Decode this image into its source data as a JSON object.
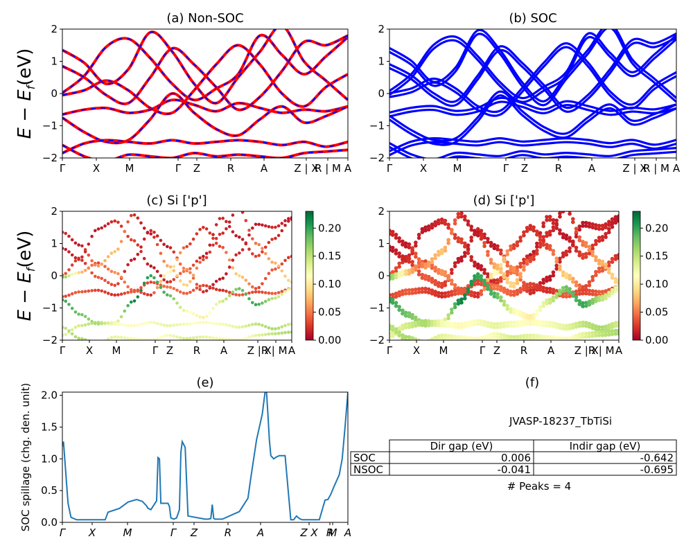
{
  "figure_texts": {
    "ylabel_main": "E − E",
    "ylabel_sub": "f",
    "ylabel_unit": "(eV)"
  },
  "chart_data": [
    {
      "id": "a",
      "type": "line",
      "title": "(a) Non-SOC",
      "ylim": [
        -2,
        2
      ],
      "yticks": [
        2,
        1,
        0,
        -1,
        -2
      ],
      "xticks": [
        "Γ",
        "X",
        "M",
        "Γ",
        "Z",
        "R",
        "A",
        "Z | X",
        "R | M",
        "A"
      ],
      "colors": [
        "#ff0000",
        "#0000ff"
      ],
      "series": [
        {
          "values": [
            0.02,
            0.55,
            1.45,
            1.7,
            1.1,
            0.3,
            -0.2,
            0.15,
            0.6,
            1.8,
            1.2,
            0.6,
            1.15,
            1.75
          ]
        },
        {
          "values": [
            0.85,
            0.5,
            -0.05,
            -0.3,
            0.5,
            1.4,
            0.9,
            0.2,
            -0.5,
            -0.1,
            0.7,
            1.6,
            1.5,
            1.8
          ]
        },
        {
          "values": [
            -0.05,
            0.1,
            0.4,
            0.1,
            -0.45,
            -0.6,
            0.1,
            0.9,
            1.5,
            0.9,
            0.0,
            -0.4,
            0.2,
            0.6
          ]
        },
        {
          "values": [
            -0.65,
            -0.5,
            -0.45,
            -0.6,
            -0.5,
            -0.2,
            -0.35,
            -0.55,
            -0.3,
            -0.45,
            -0.6,
            -0.5,
            -0.55,
            -0.4
          ]
        },
        {
          "values": [
            -0.75,
            -1.2,
            -1.5,
            -1.45,
            -0.8,
            0.0,
            -0.6,
            -1.1,
            -1.3,
            -0.8,
            -0.4,
            -0.9,
            -0.7,
            -0.4
          ]
        },
        {
          "values": [
            -1.85,
            -1.55,
            -1.45,
            -1.5,
            -1.55,
            -1.45,
            -1.55,
            -1.5,
            -1.45,
            -1.5,
            -1.6,
            -1.5,
            -1.65,
            -1.5
          ]
        },
        {
          "values": [
            -1.6,
            -1.95,
            -2.1,
            -1.9,
            -1.95,
            -2.0,
            -1.85,
            -1.95,
            -1.9,
            -1.95,
            -2.0,
            -1.85,
            -1.8,
            -1.75
          ]
        },
        {
          "values": [
            1.35,
            0.95,
            0.3,
            0.75,
            1.9,
            1.3,
            0.3,
            -0.3,
            0.5,
            1.3,
            2.1,
            1.0,
            0.4,
            -0.2
          ]
        }
      ]
    },
    {
      "id": "b",
      "type": "line",
      "title": "(b) SOC",
      "ylim": [
        -2,
        2
      ],
      "yticks": [
        2,
        1,
        0,
        -1,
        -2
      ],
      "xticks": [
        "Γ",
        "X",
        "M",
        "Γ",
        "Z",
        "R",
        "A",
        "Z | X",
        "R | M",
        "A"
      ],
      "colors": [
        "#0000ff"
      ],
      "series": [
        {
          "values": [
            0.02,
            0.55,
            1.45,
            1.7,
            1.1,
            0.3,
            -0.2,
            0.15,
            0.6,
            1.8,
            1.2,
            0.6,
            1.15,
            1.75
          ]
        },
        {
          "values": [
            0.85,
            0.5,
            -0.05,
            -0.3,
            0.5,
            1.4,
            0.9,
            0.2,
            -0.5,
            -0.1,
            0.7,
            1.6,
            1.5,
            1.8
          ]
        },
        {
          "values": [
            -0.05,
            0.1,
            0.4,
            0.1,
            -0.45,
            -0.6,
            0.1,
            0.9,
            1.5,
            0.9,
            0.0,
            -0.4,
            0.2,
            0.6
          ]
        },
        {
          "values": [
            -0.65,
            -0.5,
            -0.45,
            -0.6,
            -0.5,
            -0.2,
            -0.35,
            -0.55,
            -0.3,
            -0.45,
            -0.6,
            -0.5,
            -0.55,
            -0.4
          ]
        },
        {
          "values": [
            -0.75,
            -1.2,
            -1.5,
            -1.45,
            -0.8,
            0.0,
            -0.6,
            -1.1,
            -1.3,
            -0.8,
            -0.4,
            -0.9,
            -0.7,
            -0.4
          ]
        },
        {
          "values": [
            -1.85,
            -1.55,
            -1.45,
            -1.5,
            -1.55,
            -1.45,
            -1.55,
            -1.5,
            -1.45,
            -1.5,
            -1.6,
            -1.5,
            -1.65,
            -1.5
          ]
        },
        {
          "values": [
            -1.6,
            -1.95,
            -2.1,
            -1.9,
            -1.95,
            -2.0,
            -1.85,
            -1.95,
            -1.9,
            -1.95,
            -2.0,
            -1.85,
            -1.8,
            -1.75
          ]
        },
        {
          "values": [
            1.35,
            0.95,
            0.3,
            0.75,
            1.9,
            1.3,
            0.3,
            -0.3,
            0.5,
            1.3,
            2.1,
            1.0,
            0.4,
            -0.2
          ]
        }
      ]
    },
    {
      "id": "c",
      "type": "scatter",
      "title": "(c)  Si ['p']",
      "ylim": [
        -2,
        2
      ],
      "yticks": [
        2,
        1,
        0,
        -1,
        -2
      ],
      "xticks": [
        "Γ",
        "X",
        "M",
        "Γ",
        "Z",
        "R",
        "A",
        "Z |R",
        "X| M",
        "A"
      ],
      "colorbar": {
        "range": [
          0.0,
          0.23
        ],
        "ticks": [
          "0.20",
          "0.15",
          "0.10",
          "0.05",
          "0.00"
        ],
        "colormap": "RdYlGn"
      },
      "series": [
        {
          "values": [
            0.02,
            0.55,
            1.45,
            1.7,
            1.1,
            0.3,
            -0.2,
            0.15,
            0.6,
            1.8,
            1.2,
            0.6,
            1.15,
            1.75
          ],
          "weights": [
            0.04,
            0.02,
            0.01,
            0.02,
            0.03,
            0.01,
            0.02,
            0.05,
            0.01,
            0.02,
            0.01,
            0.03,
            0.02,
            0.01
          ]
        },
        {
          "values": [
            0.85,
            0.5,
            -0.05,
            -0.3,
            0.5,
            1.4,
            0.9,
            0.2,
            -0.5,
            -0.1,
            0.7,
            1.6,
            1.5,
            1.8
          ],
          "weights": [
            0.01,
            0.02,
            0.04,
            0.03,
            0.01,
            0.02,
            0.01,
            0.06,
            0.02,
            0.01,
            0.02,
            0.01,
            0.02,
            0.01
          ]
        },
        {
          "values": [
            -0.05,
            0.1,
            0.4,
            0.1,
            -0.45,
            -0.6,
            0.1,
            0.9,
            1.5,
            0.9,
            0.0,
            -0.4,
            0.2,
            0.6
          ],
          "weights": [
            0.18,
            0.08,
            0.03,
            0.06,
            0.04,
            0.02,
            0.12,
            0.03,
            0.02,
            0.03,
            0.09,
            0.03,
            0.04,
            0.02
          ]
        },
        {
          "values": [
            -0.65,
            -0.5,
            -0.45,
            -0.6,
            -0.5,
            -0.2,
            -0.35,
            -0.55,
            -0.3,
            -0.45,
            -0.6,
            -0.5,
            -0.55,
            -0.4
          ],
          "weights": [
            0.03,
            0.04,
            0.03,
            0.02,
            0.04,
            0.03,
            0.05,
            0.04,
            0.03,
            0.02,
            0.04,
            0.03,
            0.04,
            0.03
          ]
        },
        {
          "values": [
            -0.75,
            -1.2,
            -1.5,
            -1.45,
            -0.8,
            0.0,
            -0.6,
            -1.1,
            -1.3,
            -0.8,
            -0.4,
            -0.9,
            -0.7,
            -0.4
          ],
          "weights": [
            0.2,
            0.18,
            0.16,
            0.12,
            0.22,
            0.2,
            0.19,
            0.12,
            0.1,
            0.14,
            0.18,
            0.2,
            0.15,
            0.12
          ]
        },
        {
          "values": [
            -1.85,
            -1.55,
            -1.45,
            -1.5,
            -1.55,
            -1.45,
            -1.55,
            -1.5,
            -1.45,
            -1.5,
            -1.6,
            -1.5,
            -1.65,
            -1.5
          ],
          "weights": [
            0.13,
            0.14,
            0.16,
            0.12,
            0.11,
            0.12,
            0.13,
            0.12,
            0.11,
            0.12,
            0.13,
            0.15,
            0.16,
            0.14
          ]
        },
        {
          "values": [
            -1.6,
            -1.95,
            -2.1,
            -1.9,
            -1.95,
            -2.0,
            -1.85,
            -1.95,
            -1.9,
            -1.95,
            -2.0,
            -1.85,
            -1.8,
            -1.75
          ],
          "weights": [
            0.15,
            0.16,
            0.14,
            0.13,
            0.12,
            0.11,
            0.12,
            0.14,
            0.13,
            0.12,
            0.11,
            0.13,
            0.15,
            0.16
          ]
        },
        {
          "values": [
            1.35,
            0.95,
            0.3,
            0.75,
            1.9,
            1.3,
            0.3,
            -0.3,
            0.5,
            1.3,
            2.1,
            1.0,
            0.4,
            -0.2
          ],
          "weights": [
            0.02,
            0.01,
            0.06,
            0.08,
            0.02,
            0.01,
            0.07,
            0.09,
            0.03,
            0.02,
            0.01,
            0.05,
            0.07,
            0.09
          ]
        }
      ]
    },
    {
      "id": "d",
      "type": "scatter",
      "title": "(d) Si ['p']",
      "ylim": [
        -2,
        2
      ],
      "yticks": [
        2,
        1,
        0,
        -1,
        -2
      ],
      "xticks": [
        "Γ",
        "X",
        "M",
        "Γ",
        "Z",
        "R",
        "A",
        "Z |R",
        "X| M",
        "A"
      ],
      "colorbar": {
        "range": [
          0.0,
          0.23
        ],
        "ticks": [
          "0.20",
          "0.15",
          "0.10",
          "0.05",
          "0.00"
        ],
        "colormap": "RdYlGn"
      },
      "series": [
        {
          "values": [
            0.02,
            0.55,
            1.45,
            1.7,
            1.1,
            0.3,
            -0.2,
            0.15,
            0.6,
            1.8,
            1.2,
            0.6,
            1.15,
            1.75
          ],
          "weights": [
            0.04,
            0.02,
            0.01,
            0.02,
            0.03,
            0.01,
            0.02,
            0.05,
            0.01,
            0.02,
            0.01,
            0.03,
            0.02,
            0.01
          ]
        },
        {
          "values": [
            0.85,
            0.5,
            -0.05,
            -0.3,
            0.5,
            1.4,
            0.9,
            0.2,
            -0.5,
            -0.1,
            0.7,
            1.6,
            1.5,
            1.8
          ],
          "weights": [
            0.01,
            0.02,
            0.04,
            0.03,
            0.01,
            0.02,
            0.01,
            0.06,
            0.02,
            0.01,
            0.02,
            0.01,
            0.02,
            0.01
          ]
        },
        {
          "values": [
            -0.05,
            0.1,
            0.4,
            0.1,
            -0.45,
            -0.6,
            0.1,
            0.9,
            1.5,
            0.9,
            0.0,
            -0.4,
            0.2,
            0.6
          ],
          "weights": [
            0.18,
            0.08,
            0.03,
            0.06,
            0.04,
            0.02,
            0.12,
            0.03,
            0.02,
            0.03,
            0.09,
            0.03,
            0.04,
            0.02
          ]
        },
        {
          "values": [
            -0.65,
            -0.5,
            -0.45,
            -0.6,
            -0.5,
            -0.2,
            -0.35,
            -0.55,
            -0.3,
            -0.45,
            -0.6,
            -0.5,
            -0.55,
            -0.4
          ],
          "weights": [
            0.03,
            0.04,
            0.03,
            0.02,
            0.04,
            0.03,
            0.05,
            0.04,
            0.03,
            0.02,
            0.04,
            0.03,
            0.04,
            0.03
          ]
        },
        {
          "values": [
            -0.75,
            -1.2,
            -1.5,
            -1.45,
            -0.8,
            0.0,
            -0.6,
            -1.1,
            -1.3,
            -0.8,
            -0.4,
            -0.9,
            -0.7,
            -0.4
          ],
          "weights": [
            0.2,
            0.18,
            0.16,
            0.12,
            0.22,
            0.2,
            0.19,
            0.12,
            0.1,
            0.14,
            0.18,
            0.2,
            0.15,
            0.12
          ]
        },
        {
          "values": [
            -1.85,
            -1.55,
            -1.45,
            -1.5,
            -1.55,
            -1.45,
            -1.55,
            -1.5,
            -1.45,
            -1.5,
            -1.6,
            -1.5,
            -1.65,
            -1.5
          ],
          "weights": [
            0.13,
            0.14,
            0.16,
            0.12,
            0.11,
            0.12,
            0.13,
            0.12,
            0.11,
            0.12,
            0.13,
            0.15,
            0.16,
            0.14
          ]
        },
        {
          "values": [
            -1.6,
            -1.95,
            -2.1,
            -1.9,
            -1.95,
            -2.0,
            -1.85,
            -1.95,
            -1.9,
            -1.95,
            -2.0,
            -1.85,
            -1.8,
            -1.75
          ],
          "weights": [
            0.15,
            0.16,
            0.14,
            0.13,
            0.12,
            0.11,
            0.12,
            0.14,
            0.13,
            0.12,
            0.11,
            0.13,
            0.15,
            0.16
          ]
        },
        {
          "values": [
            1.35,
            0.95,
            0.3,
            0.75,
            1.9,
            1.3,
            0.3,
            -0.3,
            0.5,
            1.3,
            2.1,
            1.0,
            0.4,
            -0.2
          ],
          "weights": [
            0.02,
            0.01,
            0.06,
            0.08,
            0.02,
            0.01,
            0.07,
            0.09,
            0.03,
            0.02,
            0.01,
            0.05,
            0.07,
            0.09
          ]
        }
      ]
    },
    {
      "id": "e",
      "type": "line",
      "title": "(e)",
      "ylabel": "SOC spillage (chg. den. unit)",
      "ylim": [
        0,
        2.05
      ],
      "yticks": [
        "0.0",
        "0.5",
        "1.0",
        "1.5",
        "2.0"
      ],
      "xticks": [
        "Γ",
        "X",
        "M",
        "Γ",
        "Z",
        "R",
        "A",
        "Z X",
        "R",
        "M",
        "A"
      ],
      "color": "#1f77b4",
      "x": [
        0,
        0.004,
        0.01,
        0.02,
        0.03,
        0.05,
        0.08,
        0.1,
        0.15,
        0.16,
        0.2,
        0.23,
        0.26,
        0.28,
        0.295,
        0.3,
        0.305,
        0.31,
        0.33,
        0.335,
        0.34,
        0.345,
        0.36,
        0.37,
        0.375,
        0.38,
        0.39,
        0.4,
        0.41,
        0.415,
        0.42,
        0.43,
        0.44,
        0.5,
        0.51,
        0.52,
        0.525,
        0.53,
        0.535,
        0.55,
        0.56,
        0.62,
        0.65,
        0.66,
        0.68,
        0.7,
        0.71,
        0.715,
        0.72,
        0.725,
        0.73,
        0.74,
        0.75,
        0.76,
        0.78,
        0.8,
        0.81,
        0.82,
        0.83,
        0.84,
        0.87,
        0.88,
        0.9,
        0.92,
        0.93,
        0.94,
        0.95,
        0.97,
        0.98,
        0.99,
        1.0
      ],
      "y": [
        1.2,
        1.27,
        0.9,
        0.3,
        0.08,
        0.04,
        0.04,
        0.04,
        0.04,
        0.16,
        0.22,
        0.32,
        0.36,
        0.33,
        0.26,
        0.22,
        0.21,
        0.2,
        0.34,
        1.02,
        1.0,
        0.3,
        0.3,
        0.3,
        0.25,
        0.07,
        0.05,
        0.07,
        0.2,
        1.1,
        1.27,
        1.18,
        0.1,
        0.05,
        0.05,
        0.06,
        0.28,
        0.06,
        0.05,
        0.05,
        0.05,
        0.17,
        0.38,
        0.7,
        1.3,
        1.7,
        2.05,
        2.05,
        1.7,
        1.3,
        1.05,
        1.0,
        1.03,
        1.05,
        1.05,
        0.04,
        0.04,
        0.1,
        0.06,
        0.04,
        0.04,
        0.04,
        0.04,
        0.35,
        0.36,
        0.44,
        0.55,
        0.75,
        1.0,
        1.5,
        2.05
      ]
    },
    {
      "id": "f",
      "type": "table",
      "title": "(f)",
      "subtitle": "JVASP-18237_TbTiSi",
      "columns": [
        "Dir gap (eV)",
        "Indir gap (eV)"
      ],
      "rows": [
        {
          "label": "SOC",
          "values": [
            "0.006",
            "-0.642"
          ]
        },
        {
          "label": "NSOC",
          "values": [
            "-0.041",
            "-0.695"
          ]
        }
      ],
      "footer": "# Peaks = 4"
    }
  ]
}
